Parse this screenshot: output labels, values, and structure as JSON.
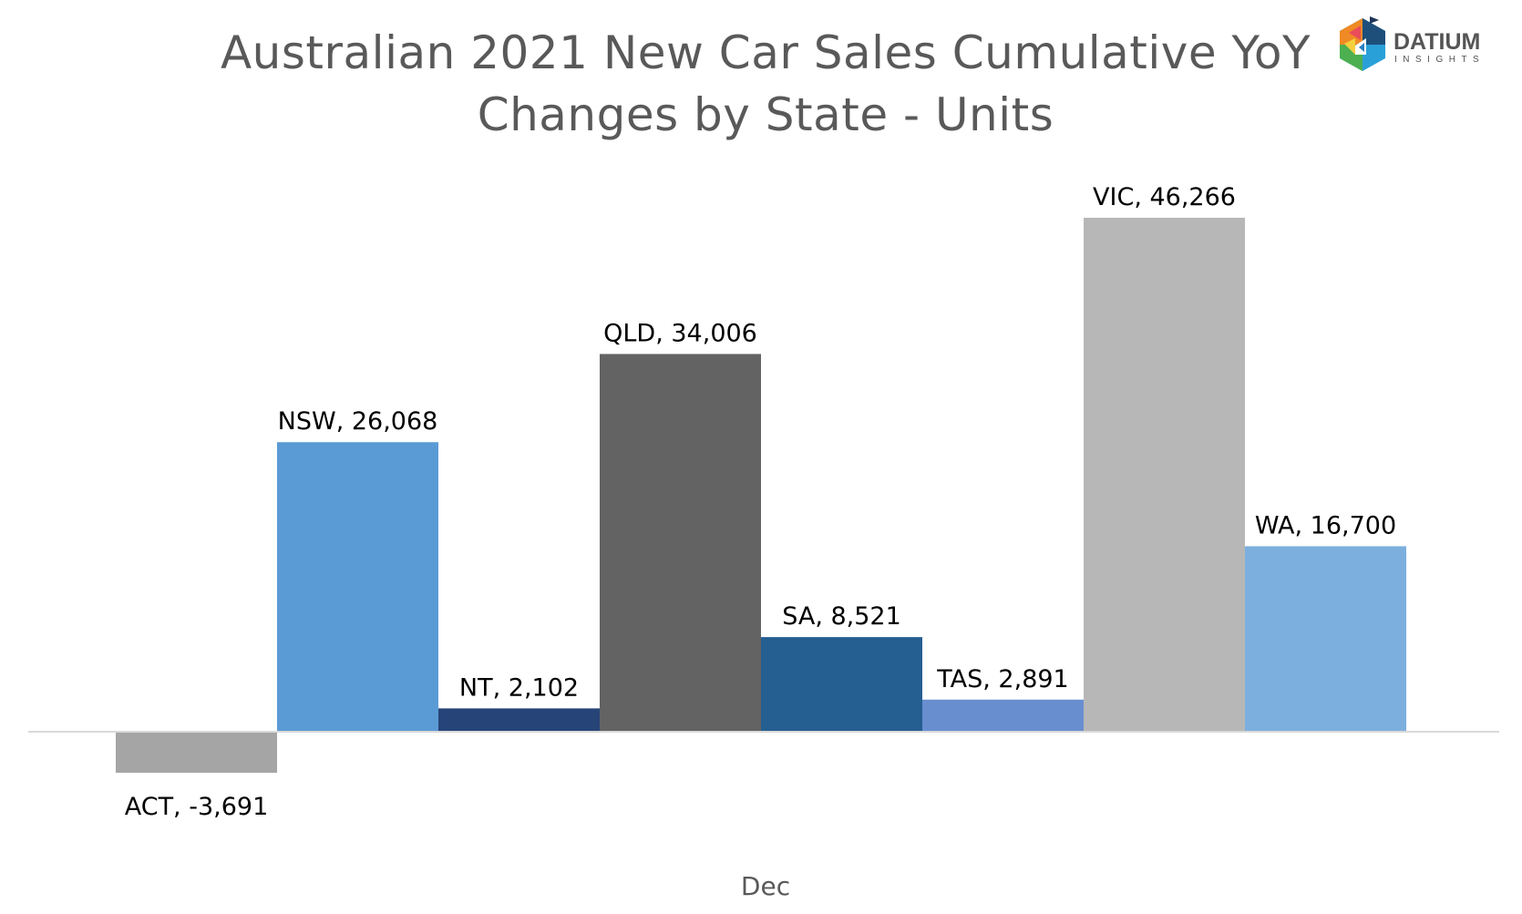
{
  "chart_data": {
    "type": "bar",
    "title": "Australian 2021 New Car Sales Cumulative YoY Changes by State - Units",
    "title_lines": [
      "Australian 2021 New Car Sales Cumulative YoY",
      "Changes by State - Units"
    ],
    "xlabel": "Dec",
    "ylabel": "",
    "categories": [
      "Dec"
    ],
    "series": [
      {
        "name": "ACT",
        "values": [
          -3691
        ],
        "label": "ACT, -3,691",
        "color": "#a5a5a5"
      },
      {
        "name": "NSW",
        "values": [
          26068
        ],
        "label": "NSW, 26,068",
        "color": "#5b9bd5"
      },
      {
        "name": "NT",
        "values": [
          2102
        ],
        "label": "NT, 2,102",
        "color": "#264478"
      },
      {
        "name": "QLD",
        "values": [
          34006
        ],
        "label": "QLD, 34,006",
        "color": "#636363"
      },
      {
        "name": "SA",
        "values": [
          8521
        ],
        "label": "SA, 8,521",
        "color": "#255e91"
      },
      {
        "name": "TAS",
        "values": [
          2891
        ],
        "label": "TAS, 2,891",
        "color": "#698ed0"
      },
      {
        "name": "VIC",
        "values": [
          46266
        ],
        "label": "VIC, 46,266",
        "color": "#b7b7b7"
      },
      {
        "name": "WA",
        "values": [
          16700
        ],
        "label": "WA, 16,700",
        "color": "#7cafdd"
      }
    ],
    "grid": false,
    "legend": "none"
  },
  "logo": {
    "text": "DATIUM",
    "subtext": "INSIGHTS"
  }
}
